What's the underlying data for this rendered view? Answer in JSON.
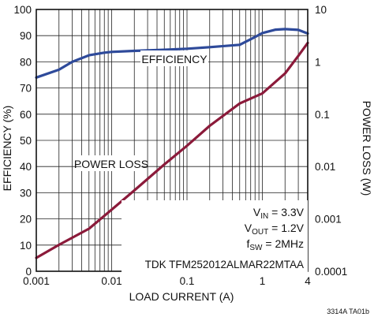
{
  "chart_data": {
    "type": "line",
    "xlabel": "LOAD CURRENT (A)",
    "ylabel_left": "EFFICIENCY (%)",
    "ylabel_right": "POWER LOSS (W)",
    "x_scale": "log",
    "xlim": [
      0.001,
      4
    ],
    "ylim_left": [
      0,
      100
    ],
    "ylim_right": [
      0.0001,
      10
    ],
    "y_right_scale": "log",
    "grid": true,
    "x_ticks": [
      {
        "v": 0.001,
        "label": "0.001"
      },
      {
        "v": 0.01,
        "label": "0.01"
      },
      {
        "v": 0.1,
        "label": "0.1"
      },
      {
        "v": 1,
        "label": "1"
      },
      {
        "v": 4,
        "label": "4"
      }
    ],
    "y_left_ticks": [
      0,
      10,
      20,
      30,
      40,
      50,
      60,
      70,
      80,
      90,
      100
    ],
    "y_right_ticks": [
      {
        "v": 0.0001,
        "label": "0.0001"
      },
      {
        "v": 0.001,
        "label": "0.001"
      },
      {
        "v": 0.01,
        "label": "0.01"
      },
      {
        "v": 0.1,
        "label": "0.1"
      },
      {
        "v": 1,
        "label": "1"
      },
      {
        "v": 10,
        "label": "10"
      }
    ],
    "series": [
      {
        "name": "EFFICIENCY",
        "axis": "left",
        "color": "#2e4a9a",
        "x": [
          0.001,
          0.002,
          0.003,
          0.005,
          0.008,
          0.01,
          0.02,
          0.05,
          0.1,
          0.2,
          0.5,
          0.8,
          1,
          1.5,
          2,
          3,
          4
        ],
        "y": [
          74,
          77,
          80,
          82.5,
          83.5,
          83.8,
          84.2,
          84.6,
          85,
          85.6,
          86.5,
          89.5,
          91,
          92.3,
          92.5,
          92.2,
          90.8
        ]
      },
      {
        "name": "POWER LOSS",
        "axis": "right",
        "color": "#8b1a3a",
        "x": [
          0.001,
          0.002,
          0.005,
          0.01,
          0.02,
          0.05,
          0.1,
          0.2,
          0.5,
          1,
          2,
          3,
          4
        ],
        "y": [
          0.00018,
          0.00032,
          0.00065,
          0.0015,
          0.0035,
          0.011,
          0.025,
          0.06,
          0.16,
          0.25,
          0.6,
          1.3,
          2.3
        ]
      }
    ],
    "annotations": {
      "efficiency_label": "EFFICIENCY",
      "power_loss_label": "POWER LOSS",
      "vin_main": "V",
      "vin_sub": "IN",
      "vin_value": " = 3.3V",
      "vout_main": "V",
      "vout_sub": "OUT",
      "vout_value": " = 1.2V",
      "fsw_main": "f",
      "fsw_sub": "SW",
      "fsw_value": " = 2MHz",
      "part": "TDK TFM252012ALMAR22MTAA"
    },
    "figure_code": "3314A TA01b"
  }
}
